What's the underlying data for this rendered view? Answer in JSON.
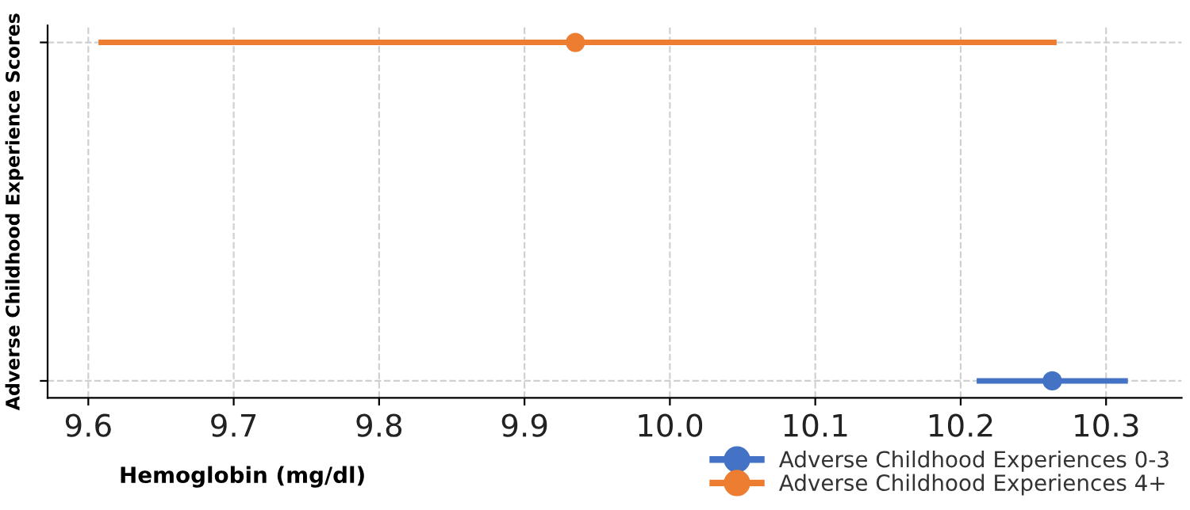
{
  "chart_data": {
    "type": "scatter",
    "orientation": "horizontal",
    "xlabel": "Hemoglobin (mg/dl)",
    "ylabel": "Adverse Childhood Experience Scores",
    "categories": [
      null,
      null
    ],
    "series": [
      {
        "name": "Adverse Childhood Experiences 0-3",
        "color": "#4472c4",
        "values": [
          null,
          10.263
        ],
        "errors": [
          null,
          [
            10.211,
            10.315
          ]
        ]
      },
      {
        "name": "Adverse Childhood Experiences 4+",
        "color": "#ed7d31",
        "values": [
          9.935,
          null
        ],
        "errors": [
          [
            9.607,
            10.266
          ],
          null
        ]
      }
    ],
    "xlim": [
      9.572,
      10.352
    ],
    "xticks": [
      9.6,
      9.7,
      9.8,
      9.9,
      {
        "value": 10,
        "label": "10.0"
      },
      10.1,
      10.2,
      10.3
    ],
    "grid": true,
    "legend": "bottom right",
    "marker": "circle"
  }
}
